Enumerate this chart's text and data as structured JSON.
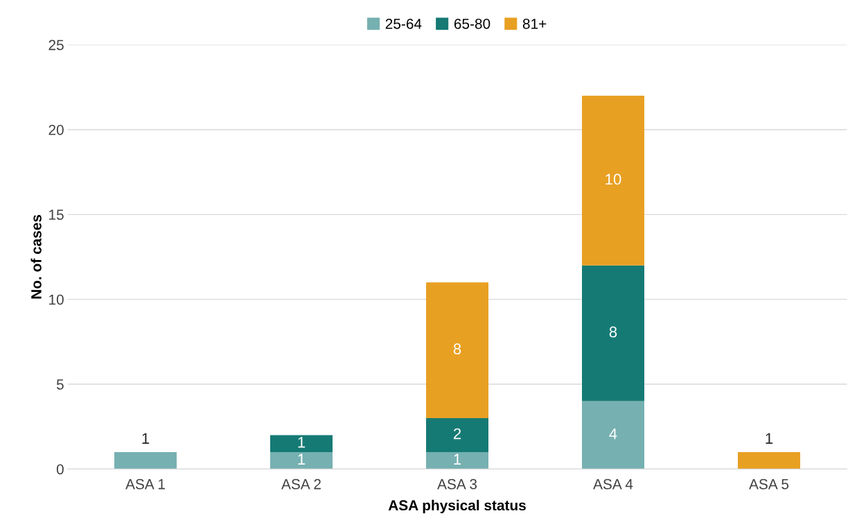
{
  "chart_data": {
    "type": "bar",
    "stacked": true,
    "xlabel": "ASA physical status",
    "ylabel": "No. of cases",
    "categories": [
      "ASA 1",
      "ASA 2",
      "ASA 3",
      "ASA 4",
      "ASA 5"
    ],
    "series": [
      {
        "name": "25-64",
        "color": "#76b0b1",
        "values": [
          1,
          1,
          1,
          4,
          0
        ],
        "value_labels": [
          null,
          "1",
          "1",
          "4",
          null
        ]
      },
      {
        "name": "65-80",
        "color": "#167a74",
        "values": [
          0,
          1,
          2,
          8,
          0
        ],
        "value_labels": [
          null,
          "1",
          "2",
          "8",
          null
        ]
      },
      {
        "name": "81+",
        "color": "#e8a023",
        "values": [
          0,
          0,
          8,
          10,
          1
        ],
        "value_labels": [
          null,
          null,
          "8",
          "10",
          null
        ]
      }
    ],
    "totals": [
      "1",
      null,
      null,
      null,
      "1"
    ],
    "ylim": [
      0,
      25
    ],
    "yticks": [
      0,
      5,
      10,
      15,
      20,
      25
    ],
    "grid": "y",
    "legend": "top"
  }
}
